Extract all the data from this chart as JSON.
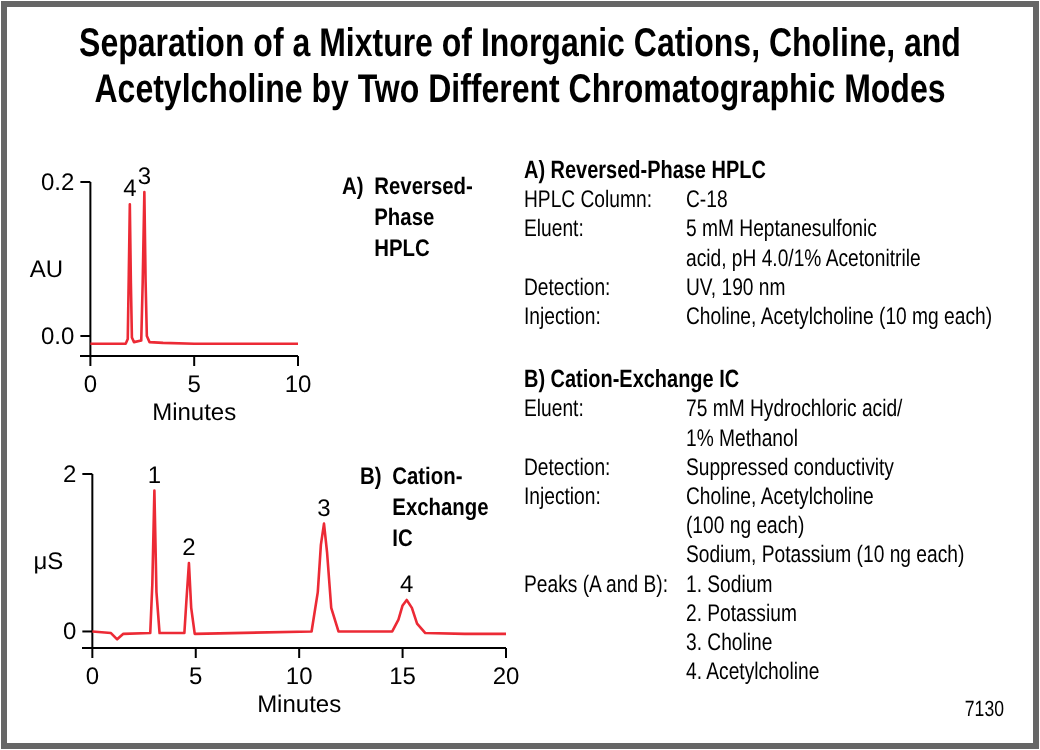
{
  "chart_data": [
    {
      "type": "line",
      "xlabel": "Minutes",
      "ylabel": "AU",
      "xlim": [
        -0.5,
        10
      ],
      "ylim": [
        -0.026,
        0.2
      ],
      "xticks": [
        0,
        5,
        10
      ],
      "yticks": [
        {
          "value": 0,
          "label": "0.0"
        },
        0.2
      ],
      "grid": false,
      "marker": "none",
      "line_style": "solid",
      "series": [
        {
          "color": "#ec2a35",
          "x": [
            0,
            1.7,
            1.8,
            1.85,
            1.9,
            1.95,
            2.0,
            2.1,
            2.45,
            2.52,
            2.6,
            2.66,
            2.72,
            2.85,
            3.5,
            5,
            7,
            10
          ],
          "values": [
            -0.01,
            -0.01,
            -0.004,
            0.08,
            0.171,
            0.07,
            -0.002,
            -0.008,
            -0.006,
            0.07,
            0.187,
            0.07,
            0.0,
            -0.008,
            -0.009,
            -0.01,
            -0.01,
            -0.01
          ]
        }
      ],
      "annotations": [
        "A) Reversed-Phase HPLC",
        {
          "text": "4",
          "x": 1.9,
          "y": 0.171
        },
        {
          "text": "3",
          "x": 2.6,
          "y": 0.187
        }
      ]
    },
    {
      "type": "line",
      "xlabel": "Minutes",
      "ylabel": "μS",
      "xlim": [
        -0.5,
        20
      ],
      "ylim": [
        -0.21,
        2
      ],
      "xticks": [
        0,
        5,
        10,
        15,
        20
      ],
      "yticks": [
        0,
        2
      ],
      "grid": false,
      "marker": "none",
      "line_style": "solid",
      "series": [
        {
          "color": "#ec2a35",
          "x": [
            0,
            0.9,
            1.2,
            1.5,
            2.8,
            2.9,
            3.0,
            3.1,
            3.25,
            4.45,
            4.55,
            4.67,
            4.78,
            4.95,
            10.6,
            10.9,
            11.05,
            11.2,
            11.35,
            11.55,
            11.9,
            14.5,
            14.8,
            15.0,
            15.2,
            15.45,
            15.7,
            16.1,
            18,
            20
          ],
          "values": [
            0.0,
            -0.02,
            -0.1,
            -0.03,
            -0.02,
            0.6,
            1.79,
            0.5,
            -0.02,
            -0.02,
            0.4,
            0.87,
            0.3,
            -0.03,
            0.0,
            0.5,
            1.1,
            1.37,
            1.0,
            0.3,
            0.0,
            0.0,
            0.15,
            0.33,
            0.4,
            0.3,
            0.1,
            -0.02,
            -0.03,
            -0.03
          ]
        }
      ],
      "annotations": [
        "B) Cation-Exchange IC",
        {
          "text": "1",
          "x": 3.0,
          "y": 1.79
        },
        {
          "text": "2",
          "x": 4.67,
          "y": 0.87
        },
        {
          "text": "3",
          "x": 11.2,
          "y": 1.37
        },
        {
          "text": "4",
          "x": 15.2,
          "y": 0.4
        }
      ]
    },
    {
      "type": "other",
      "title": "Separation of a Mixture of Inorganic Cations, Choline, and Acetylcholine by Two Different Chromatographic Modes",
      "annotations": [
        "A)  Reversed-Phase HPLC",
        "HPLC Column:\tC-18",
        "Eluent:\t5 mM Heptanesulfonic",
        "\tacid, pH 4.0/1% Acetonitrile",
        "Detection:\tUV, 190 nm",
        "Injection:\tCholine, Acetylcholine (10 mg each)",
        "B)  Cation-Exchange IC",
        "Eluent:\t75 mM Hydrochloric acid/",
        "\t1% Methanol",
        "Detection:\tSuppressed conductivity",
        "Injection:\tCholine, Acetylcholine",
        "\t(100 ng each)",
        "\tSodium, Potassium (10 ng each)",
        "Peaks (A and B):\t1. Sodium",
        "\t2. Potassium",
        "\t3. Choline",
        "\t4. Acetylcholine",
        "7130"
      ]
    }
  ]
}
